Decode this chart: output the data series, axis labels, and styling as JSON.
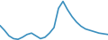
{
  "x": [
    0,
    1,
    2,
    3,
    4,
    5,
    6,
    7,
    8,
    9,
    10,
    11,
    12,
    13,
    14,
    15,
    16,
    17,
    18,
    19,
    20,
    21,
    22,
    23,
    24
  ],
  "y": [
    55,
    48,
    40,
    36,
    35,
    38,
    42,
    44,
    40,
    36,
    38,
    44,
    52,
    80,
    90,
    78,
    68,
    60,
    54,
    50,
    48,
    46,
    44,
    43,
    42
  ],
  "line_color": "#3a8fbe",
  "background_color": "#ffffff",
  "linewidth": 1.2
}
